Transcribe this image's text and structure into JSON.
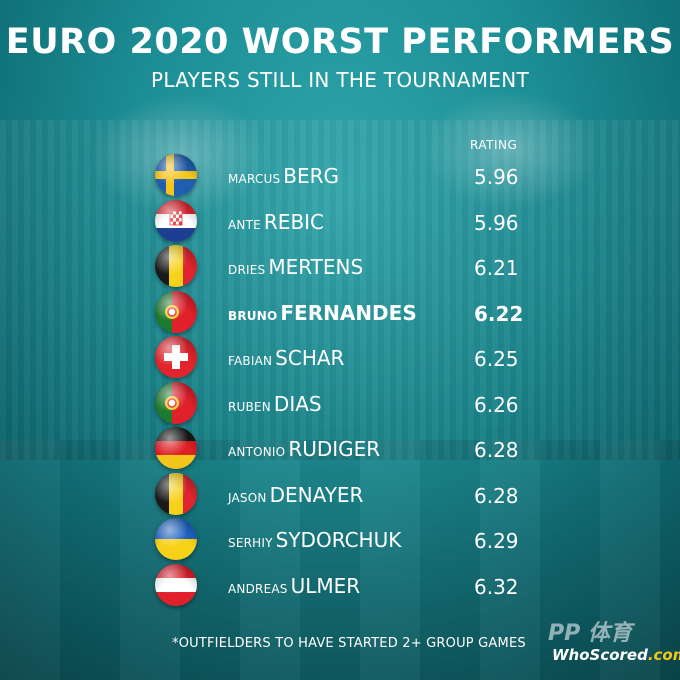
{
  "title": "EURO 2020 WORST PERFORMERS",
  "subtitle": "PLAYERS STILL IN THE TOURNAMENT",
  "rating_header": "RATING",
  "players": [
    {
      "first": "MARCUS",
      "last": "BERG",
      "rating": "5.96",
      "flag": "sweden-flag-icon",
      "highlight": false
    },
    {
      "first": "ANTE",
      "last": "REBIC",
      "rating": "5.96",
      "flag": "croatia-flag-icon",
      "highlight": false
    },
    {
      "first": "DRIES",
      "last": "MERTENS",
      "rating": "6.21",
      "flag": "belgium-flag-icon",
      "highlight": false
    },
    {
      "first": "BRUNO",
      "last": "FERNANDES",
      "rating": "6.22",
      "flag": "portugal-flag-icon",
      "highlight": true
    },
    {
      "first": "FABIAN",
      "last": "SCHAR",
      "rating": "6.25",
      "flag": "switzerland-flag-icon",
      "highlight": false
    },
    {
      "first": "RUBEN",
      "last": "DIAS",
      "rating": "6.26",
      "flag": "portugal-flag-icon",
      "highlight": false
    },
    {
      "first": "ANTONIO",
      "last": "RUDIGER",
      "rating": "6.28",
      "flag": "germany-flag-icon",
      "highlight": false
    },
    {
      "first": "JASON",
      "last": "DENAYER",
      "rating": "6.28",
      "flag": "belgium-flag-icon",
      "highlight": false
    },
    {
      "first": "SERHIY",
      "last": "SYDORCHUK",
      "rating": "6.29",
      "flag": "ukraine-flag-icon",
      "highlight": false
    },
    {
      "first": "ANDREAS",
      "last": "ULMER",
      "rating": "6.32",
      "flag": "austria-flag-icon",
      "highlight": false
    }
  ],
  "footnote": "*OUTFIELDERS TO HAVE STARTED 2+ GROUP GAMES",
  "watermark": {
    "pp": "PP 体育",
    "logo_main": "WhoScored",
    "logo_suffix": ".com"
  },
  "colors": {
    "background": "#1c8d94",
    "text": "#ffffff",
    "logo_accent": "#f5c518"
  }
}
